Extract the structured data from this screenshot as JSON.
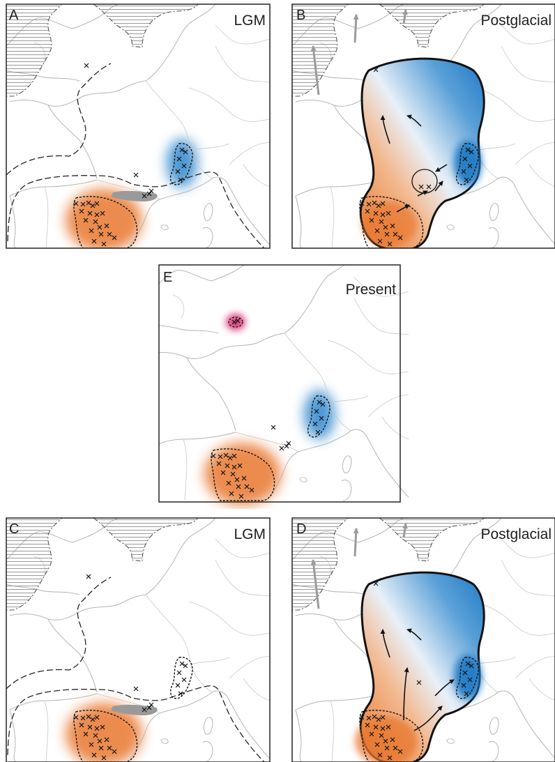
{
  "panels": [
    {
      "id": "A",
      "letter": "A",
      "title": "LGM",
      "markers": "lgm"
    },
    {
      "id": "B",
      "letter": "B",
      "title": "Postglacial",
      "markers": "post"
    },
    {
      "id": "E",
      "letter": "E",
      "title": "Present",
      "markers": "present"
    },
    {
      "id": "C",
      "letter": "C",
      "title": "LGM",
      "markers": "lgm"
    },
    {
      "id": "D",
      "letter": "D",
      "title": "Postglacial",
      "markers": "post"
    }
  ],
  "legend_colors": {
    "western_lineage": "#e8772e",
    "eastern_lineage": "#2f86cc",
    "isolated_population": "#d4246b",
    "glacier_and_migration": "#9a9a9a",
    "coastline": "#b4b4b4",
    "lgm_coastline": "#222222"
  }
}
